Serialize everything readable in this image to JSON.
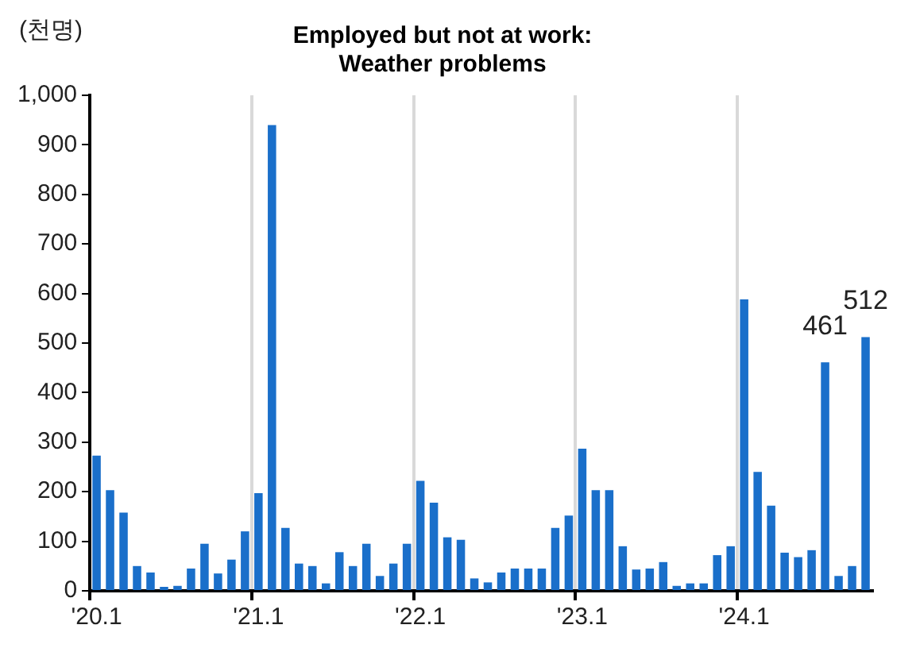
{
  "chart_data": {
    "type": "bar",
    "title": "Employed but not at work:\nWeather problems",
    "ylabel": "(천명)",
    "categories": [
      "'20.1",
      null,
      null,
      null,
      null,
      null,
      null,
      null,
      null,
      null,
      null,
      null,
      "'21.1",
      null,
      null,
      null,
      null,
      null,
      null,
      null,
      null,
      null,
      null,
      null,
      "'22.1",
      null,
      null,
      null,
      null,
      null,
      null,
      null,
      null,
      null,
      null,
      null,
      "'23.1",
      null,
      null,
      null,
      null,
      null,
      null,
      null,
      null,
      null,
      null,
      null,
      "'24.1",
      null,
      null,
      null,
      null,
      null,
      null,
      null,
      null,
      null
    ],
    "values": [
      273,
      203,
      158,
      50,
      37,
      8,
      10,
      45,
      95,
      35,
      63,
      120,
      197,
      940,
      127,
      55,
      50,
      15,
      78,
      50,
      95,
      30,
      55,
      95,
      222,
      178,
      108,
      103,
      25,
      17,
      37,
      45,
      45,
      45,
      127,
      152,
      287,
      203,
      203,
      90,
      43,
      45,
      58,
      10,
      15,
      15,
      72,
      90,
      588,
      240,
      172,
      77,
      68,
      82,
      461,
      30,
      50,
      512
    ],
    "value_labels": [
      null,
      null,
      null,
      null,
      null,
      null,
      null,
      null,
      null,
      null,
      null,
      null,
      null,
      null,
      null,
      null,
      null,
      null,
      null,
      null,
      null,
      null,
      null,
      null,
      null,
      null,
      null,
      null,
      null,
      null,
      null,
      null,
      null,
      null,
      null,
      null,
      null,
      null,
      null,
      null,
      null,
      null,
      null,
      null,
      null,
      null,
      null,
      null,
      null,
      null,
      null,
      null,
      null,
      null,
      "461",
      null,
      null,
      "512"
    ],
    "color": "#1a6fca",
    "ylim": [
      0,
      1000
    ],
    "yticks": [
      0,
      100,
      200,
      300,
      400,
      500,
      600,
      700,
      800,
      900,
      {
        "value": 1000,
        "label": "1,000"
      }
    ],
    "grid": "x",
    "legend": false
  }
}
